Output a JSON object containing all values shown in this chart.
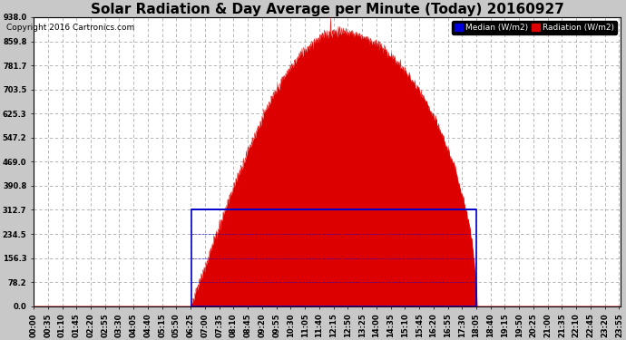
{
  "title": "Solar Radiation & Day Average per Minute (Today) 20160927",
  "copyright": "Copyright 2016 Cartronics.com",
  "legend_labels": [
    "Median (W/m2)",
    "Radiation (W/m2)"
  ],
  "legend_colors": [
    "#0000dd",
    "#dd0000"
  ],
  "yticks": [
    0.0,
    78.2,
    156.3,
    234.5,
    312.7,
    390.8,
    469.0,
    547.2,
    625.3,
    703.5,
    781.7,
    859.8,
    938.0
  ],
  "ymax": 938.0,
  "ymin": 0.0,
  "bg_color": "#c8c8c8",
  "plot_bg_color": "#ffffff",
  "grid_color": "#aaaaaa",
  "title_fontsize": 11,
  "copyright_fontsize": 6.5,
  "tick_fontsize": 6,
  "radiation_color": "#dd0000",
  "median_color": "#0000cc",
  "n_minutes": 1440,
  "sunrise_minute": 386,
  "sunset_minute": 1086,
  "median_value": 312.7,
  "peak_value": 938.0,
  "xtick_step": 35
}
